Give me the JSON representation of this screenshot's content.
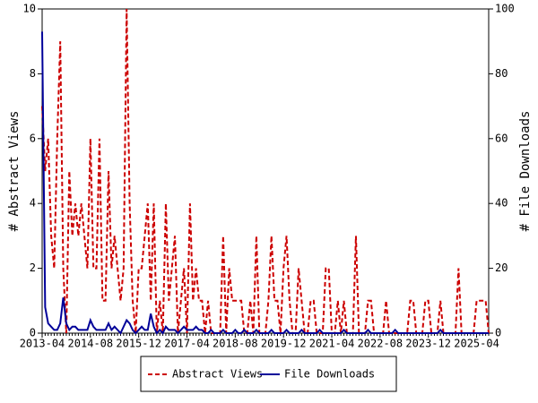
{
  "chart_data": {
    "type": "line",
    "categories": [
      "2013-04",
      null,
      null,
      null,
      null,
      null,
      null,
      null,
      null,
      null,
      null,
      null,
      null,
      null,
      null,
      null,
      "2014-08",
      null,
      null,
      null,
      null,
      null,
      null,
      null,
      null,
      null,
      null,
      null,
      null,
      null,
      null,
      null,
      "2015-12",
      null,
      null,
      null,
      null,
      null,
      null,
      null,
      null,
      null,
      null,
      null,
      null,
      null,
      null,
      null,
      "2017-04",
      null,
      null,
      null,
      null,
      null,
      null,
      null,
      null,
      null,
      null,
      null,
      null,
      null,
      null,
      null,
      "2018-08",
      null,
      null,
      null,
      null,
      null,
      null,
      null,
      null,
      null,
      null,
      null,
      null,
      null,
      null,
      null,
      "2019-12",
      null,
      null,
      null,
      null,
      null,
      null,
      null,
      null,
      null,
      null,
      null,
      null,
      null,
      null,
      null,
      "2021-04",
      null,
      null,
      null,
      null,
      null,
      null,
      null,
      null,
      null,
      null,
      null,
      null,
      null,
      null,
      null,
      "2022-08",
      null,
      null,
      null,
      null,
      null,
      null,
      null,
      null,
      null,
      null,
      null,
      null,
      null,
      null,
      null,
      "2023-12",
      null,
      null,
      null,
      null,
      null,
      null,
      null,
      null,
      null,
      null,
      null,
      null,
      null,
      null,
      null,
      "2025-04",
      null,
      null,
      null,
      null
    ],
    "series": [
      {
        "name": "Abstract Views",
        "color": "#cc0000",
        "dashed": true,
        "values": [
          7,
          5,
          6,
          3,
          2,
          6,
          9,
          2,
          0,
          5,
          3,
          4,
          3,
          4,
          3,
          2,
          6,
          2,
          2,
          6,
          1,
          1,
          5,
          2,
          3,
          2,
          1,
          2,
          10,
          4,
          1,
          0,
          2,
          2,
          3,
          4,
          1,
          4,
          0,
          1,
          0,
          4,
          1,
          2,
          3,
          0,
          1,
          2,
          0,
          4,
          1,
          2,
          1,
          1,
          0,
          1,
          0,
          0,
          0,
          0,
          3,
          0,
          2,
          1,
          1,
          1,
          1,
          0,
          0,
          1,
          0,
          3,
          0,
          0,
          0,
          1,
          3,
          1,
          1,
          0,
          2,
          3,
          1,
          0,
          0,
          2,
          1,
          0,
          0,
          1,
          1,
          0,
          0,
          0,
          2,
          2,
          0,
          0,
          1,
          0,
          1,
          0,
          0,
          0,
          3,
          0,
          0,
          0,
          1,
          1,
          0,
          0,
          0,
          0,
          1,
          0,
          0,
          0,
          0,
          0,
          0,
          0,
          1,
          1,
          0,
          0,
          0,
          1,
          1,
          0,
          0,
          0,
          1,
          0,
          0,
          0,
          0,
          0,
          2,
          0,
          0,
          0,
          0,
          0,
          1,
          1,
          1,
          1,
          0
        ]
      },
      {
        "name": "File Downloads",
        "color": "#000099",
        "dashed": false,
        "axis": "y2",
        "values": [
          93,
          8,
          3,
          2,
          1,
          1,
          3,
          11,
          3,
          1,
          2,
          2,
          1,
          1,
          1,
          1,
          4,
          2,
          1,
          1,
          1,
          1,
          3,
          1,
          2,
          1,
          0,
          2,
          4,
          3,
          1,
          0,
          1,
          2,
          1,
          1,
          6,
          2,
          0,
          1,
          0,
          2,
          1,
          1,
          1,
          0,
          1,
          2,
          1,
          1,
          1,
          2,
          1,
          1,
          0,
          0,
          1,
          0,
          0,
          0,
          1,
          0,
          0,
          0,
          1,
          0,
          0,
          1,
          0,
          0,
          0,
          1,
          0,
          0,
          0,
          0,
          1,
          0,
          0,
          0,
          0,
          1,
          0,
          0,
          0,
          0,
          1,
          0,
          0,
          0,
          0,
          0,
          1,
          0,
          0,
          0,
          0,
          0,
          0,
          0,
          1,
          0,
          0,
          0,
          0,
          0,
          0,
          0,
          1,
          0,
          0,
          0,
          0,
          0,
          0,
          0,
          0,
          1,
          0,
          0,
          0,
          0,
          0,
          0,
          0,
          0,
          0,
          0,
          0,
          0,
          0,
          0,
          1,
          0,
          0,
          0,
          0,
          0,
          0,
          0,
          0,
          0,
          0,
          0,
          0,
          0,
          0,
          0,
          0
        ]
      }
    ],
    "ylabel": "# Abstract Views",
    "y2label": "# File Downloads",
    "ylim": [
      0,
      10
    ],
    "yticks": [
      0,
      2,
      4,
      6,
      8,
      10
    ],
    "y2lim": [
      0,
      100
    ],
    "y2ticks": [
      0,
      20,
      40,
      60,
      80,
      100
    ],
    "legend": "bottom"
  }
}
